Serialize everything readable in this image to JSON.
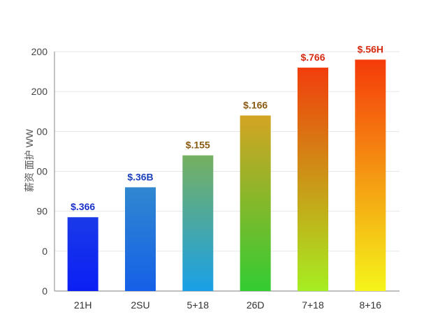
{
  "chart_data": {
    "type": "bar",
    "ylabel": "薪资 面护 WW",
    "y_tick_labels": [
      "0",
      "0",
      "90",
      "00",
      "00",
      "200",
      "200"
    ],
    "y_tick_values": [
      0,
      1,
      2,
      3,
      4,
      5,
      6
    ],
    "ylim": [
      0,
      6
    ],
    "grid": true,
    "categories": [
      "21H",
      "2SU",
      "5+18",
      "26D",
      "7+18",
      "8+16"
    ],
    "values": [
      1.85,
      2.6,
      3.4,
      4.4,
      5.6,
      5.8
    ],
    "data_labels": [
      "$.366",
      "$.36B",
      "$.155",
      "$.166",
      "$.766",
      "$.56H"
    ],
    "colors": {
      "bar_bottom": [
        "#0b1ff5",
        "#1560e8",
        "#1aa0e8",
        "#33cc33",
        "#a6ee22",
        "#f5f51a"
      ],
      "bar_top": [
        "#1a3ae8",
        "#3088d0",
        "#77b060",
        "#d4a423",
        "#f23d0c",
        "#f53a0a"
      ],
      "label": [
        "#1a2fcc",
        "#1a3fbb",
        "#8a5a12",
        "#8a5a12",
        "#d62a10",
        "#d62a10"
      ]
    }
  }
}
